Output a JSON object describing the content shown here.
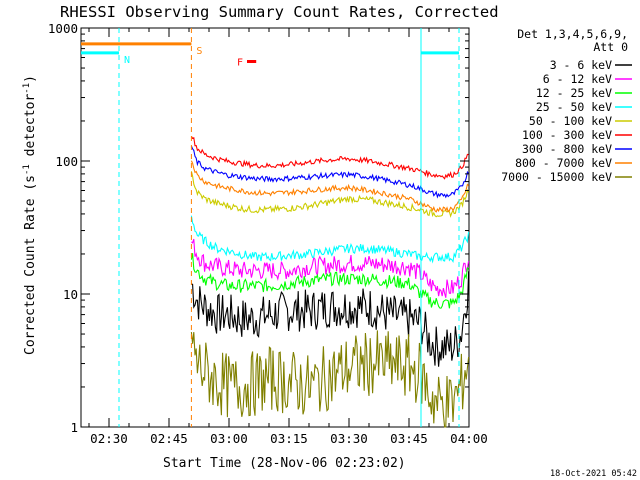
{
  "chart_data": {
    "type": "line",
    "title": "RHESSI Observing Summary Count Rates, Corrected",
    "xlabel": "Start Time (28-Nov-06 02:23:02)",
    "ylabel": "Corrected Count Rate (s⁻¹ detector⁻¹)",
    "ylabel_parts": {
      "a": "Corrected Count Rate (s",
      "b": "-1",
      "c": " detector",
      "d": "-1",
      "e": ")"
    },
    "footer": "18-Oct-2021 05:42",
    "yscale": "log",
    "ylim": [
      1,
      1000
    ],
    "xlim_min": [
      143,
      240
    ],
    "x_ticks": [
      {
        "min": 150,
        "label": "02:30"
      },
      {
        "min": 165,
        "label": "02:45"
      },
      {
        "min": 180,
        "label": "03:00"
      },
      {
        "min": 195,
        "label": "03:15"
      },
      {
        "min": 210,
        "label": "03:30"
      },
      {
        "min": 225,
        "label": "03:45"
      },
      {
        "min": 240,
        "label": "04:00"
      }
    ],
    "y_ticks": [
      {
        "value": 1,
        "label": "1"
      },
      {
        "value": 10,
        "label": "10"
      },
      {
        "value": 100,
        "label": "100"
      },
      {
        "value": 1000,
        "label": "1000"
      }
    ],
    "legend": {
      "header": [
        "Det 1,3,4,5,6,9,",
        "Att 0"
      ],
      "entries": [
        {
          "label": "3 - 6 keV",
          "color": "#000000"
        },
        {
          "label": "6 - 12 keV",
          "color": "#ff00ff"
        },
        {
          "label": "12 - 25 keV",
          "color": "#00ff00"
        },
        {
          "label": "25 - 50 keV",
          "color": "#00ffff"
        },
        {
          "label": "50 - 100 keV",
          "color": "#cccc00"
        },
        {
          "label": "100 - 300 keV",
          "color": "#ff0000"
        },
        {
          "label": "300 - 800 keV",
          "color": "#0000ff"
        },
        {
          "label": "800 - 7000 keV",
          "color": "#ff8000"
        },
        {
          "label": "7000 - 15000 keV",
          "color": "#808000"
        }
      ]
    },
    "flags": [
      {
        "letter": "N",
        "color": "#00ffff",
        "value": 650,
        "segments": [
          [
            143,
            152.5
          ],
          [
            228,
            237.5
          ]
        ]
      },
      {
        "letter": "S",
        "color": "#ff8000",
        "value": 760,
        "segments": [
          [
            143,
            170.6
          ]
        ]
      },
      {
        "letter": "F",
        "color": "#ff0000",
        "value": 560,
        "segments": [
          [
            184.5,
            186.8
          ]
        ]
      }
    ],
    "markers": [
      {
        "min": 152.5,
        "color": "#00ffff",
        "style": "dashed"
      },
      {
        "min": 170.6,
        "color": "#ff8000",
        "style": "dashed"
      },
      {
        "min": 228,
        "color": "#00ffff",
        "style": "solid"
      },
      {
        "min": 237.5,
        "color": "#00ffff",
        "style": "dashed"
      }
    ],
    "series": [
      {
        "name": "3 - 6 keV",
        "color": "#000000",
        "x": [
          170.6,
          172,
          174,
          177,
          180,
          183,
          186,
          190,
          195,
          200,
          205,
          210,
          215,
          220,
          225,
          228,
          230,
          232,
          234,
          236,
          238,
          240
        ],
        "y": [
          12,
          9,
          8,
          7,
          7,
          6.5,
          6.5,
          7,
          7.5,
          7.5,
          8,
          8,
          8,
          7,
          6.5,
          6,
          4.5,
          4,
          4,
          4,
          5,
          13
        ]
      },
      {
        "name": "6 - 12 keV",
        "color": "#ff00ff",
        "x": [
          170.6,
          172,
          174,
          177,
          180,
          183,
          186,
          190,
          195,
          200,
          205,
          210,
          215,
          220,
          225,
          228,
          230,
          232,
          234,
          236,
          238,
          240
        ],
        "y": [
          25,
          20,
          17,
          16,
          15.5,
          15,
          15,
          15,
          15,
          16,
          16.5,
          17,
          17,
          16.5,
          16,
          14,
          12,
          11,
          11,
          11,
          13,
          20
        ]
      },
      {
        "name": "12 - 25 keV",
        "color": "#00ff00",
        "x": [
          170.6,
          172,
          174,
          177,
          180,
          183,
          186,
          190,
          195,
          200,
          205,
          210,
          215,
          220,
          225,
          228,
          230,
          232,
          234,
          236,
          238,
          240
        ],
        "y": [
          19,
          15,
          13,
          12,
          11.5,
          11.5,
          11.5,
          11.5,
          12,
          12.5,
          13,
          13,
          13,
          12.5,
          12,
          10,
          9,
          8.5,
          8.5,
          8.5,
          10,
          16
        ]
      },
      {
        "name": "25 - 50 keV",
        "color": "#00ffff",
        "x": [
          170.6,
          172,
          174,
          177,
          180,
          183,
          186,
          190,
          195,
          200,
          205,
          210,
          215,
          220,
          225,
          228,
          230,
          232,
          234,
          236,
          238,
          240
        ],
        "y": [
          38,
          28,
          25,
          22,
          21,
          20,
          19,
          19,
          19.5,
          20,
          21,
          22,
          22,
          21,
          20,
          19,
          19,
          19,
          19,
          19,
          22,
          28
        ]
      },
      {
        "name": "50 - 100 keV",
        "color": "#cccc00",
        "x": [
          170.6,
          172,
          174,
          177,
          180,
          183,
          186,
          190,
          195,
          200,
          205,
          210,
          215,
          220,
          225,
          228,
          230,
          232,
          234,
          236,
          238,
          240
        ],
        "y": [
          80,
          58,
          52,
          48,
          46,
          44,
          43,
          43,
          44,
          46,
          49,
          52,
          51,
          48,
          45,
          43,
          41,
          40,
          40,
          41,
          46,
          62
        ]
      },
      {
        "name": "100 - 300 keV",
        "color": "#ff0000",
        "x": [
          170.6,
          172,
          174,
          177,
          180,
          183,
          186,
          190,
          195,
          200,
          205,
          210,
          215,
          220,
          225,
          228,
          230,
          232,
          234,
          236,
          238,
          240
        ],
        "y": [
          160,
          125,
          112,
          104,
          99,
          96,
          93,
          92,
          94,
          98,
          102,
          104,
          100,
          94,
          88,
          84,
          80,
          78,
          77,
          79,
          88,
          115
        ]
      },
      {
        "name": "300 - 800 keV",
        "color": "#0000ff",
        "x": [
          170.6,
          172,
          174,
          177,
          180,
          183,
          186,
          190,
          195,
          200,
          205,
          210,
          215,
          220,
          225,
          228,
          230,
          232,
          234,
          236,
          238,
          240
        ],
        "y": [
          130,
          98,
          88,
          82,
          78,
          76,
          74,
          73,
          74,
          76,
          78,
          79,
          76,
          71,
          66,
          62,
          58,
          56,
          55,
          56,
          63,
          85
        ]
      },
      {
        "name": "800 - 7000 keV",
        "color": "#ff8000",
        "x": [
          170.6,
          172,
          174,
          177,
          180,
          183,
          186,
          190,
          195,
          200,
          205,
          210,
          215,
          220,
          225,
          228,
          230,
          232,
          234,
          236,
          238,
          240
        ],
        "y": [
          102,
          78,
          70,
          65,
          62,
          60,
          58,
          57,
          58,
          60,
          62,
          63,
          60,
          56,
          52,
          48,
          45,
          43,
          43,
          44,
          50,
          68
        ]
      },
      {
        "name": "7000 - 15000 keV",
        "color": "#808000",
        "x": [
          170.6,
          172,
          174,
          177,
          180,
          183,
          186,
          190,
          195,
          200,
          205,
          210,
          215,
          220,
          225,
          228,
          230,
          232,
          234,
          236,
          238,
          240
        ],
        "y": [
          4.5,
          3,
          2.6,
          2.2,
          2,
          2,
          2.1,
          2.3,
          2.2,
          2,
          2.4,
          2.8,
          3,
          3,
          2.8,
          2.5,
          1.8,
          1.5,
          1.5,
          1.5,
          2,
          3.5
        ]
      }
    ]
  }
}
